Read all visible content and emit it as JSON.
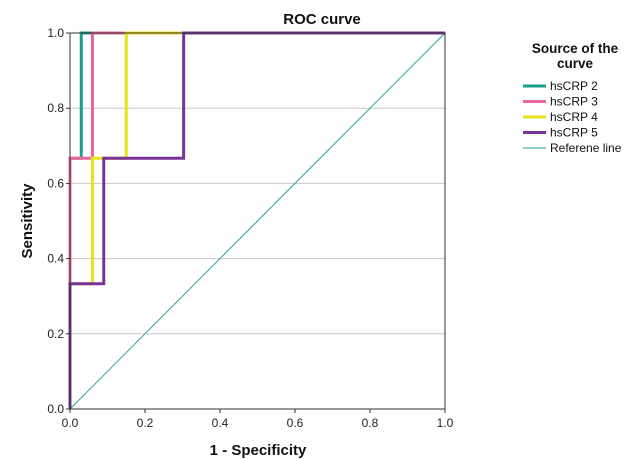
{
  "chart_data": {
    "type": "line",
    "title": "ROC curve",
    "xlabel": "1 - Specificity",
    "ylabel": "Sensitivity",
    "xlim": [
      0,
      1
    ],
    "ylim": [
      0,
      1
    ],
    "x_ticks": [
      "0.0",
      "0.2",
      "0.4",
      "0.6",
      "0.8",
      "1.0"
    ],
    "y_ticks": [
      "0.0",
      "0.2",
      "0.4",
      "0.6",
      "0.8",
      "1.0"
    ],
    "grid": "horizontal",
    "legend": {
      "title": "Source of the curve",
      "title_lines": [
        "Source of the",
        "curve"
      ],
      "position": "right"
    },
    "series": [
      {
        "name": "hsCRP 2",
        "color": "#1a9e87",
        "points": [
          [
            0,
            0
          ],
          [
            0,
            0.667
          ],
          [
            0.03,
            0.667
          ],
          [
            0.03,
            1.0
          ],
          [
            1.0,
            1.0
          ]
        ]
      },
      {
        "name": "hsCRP 3",
        "color": "#e8669e",
        "points": [
          [
            0,
            0
          ],
          [
            0,
            0.667
          ],
          [
            0.06,
            0.667
          ],
          [
            0.06,
            1.0
          ],
          [
            1.0,
            1.0
          ]
        ]
      },
      {
        "name": "hsCRP 4",
        "color": "#e8e319",
        "points": [
          [
            0,
            0
          ],
          [
            0,
            0.333
          ],
          [
            0.06,
            0.333
          ],
          [
            0.06,
            0.667
          ],
          [
            0.15,
            0.667
          ],
          [
            0.15,
            1.0
          ],
          [
            1.0,
            1.0
          ]
        ]
      },
      {
        "name": "hsCRP 5",
        "color": "#7a3399",
        "points": [
          [
            0,
            0
          ],
          [
            0,
            0.333
          ],
          [
            0.09,
            0.333
          ],
          [
            0.09,
            0.667
          ],
          [
            0.303,
            0.667
          ],
          [
            0.303,
            1.0
          ],
          [
            1.0,
            1.0
          ]
        ]
      },
      {
        "name": "Referene line",
        "color": "#2aa39a",
        "thin": true,
        "points": [
          [
            0,
            0
          ],
          [
            1.0,
            1.0
          ]
        ]
      }
    ]
  }
}
